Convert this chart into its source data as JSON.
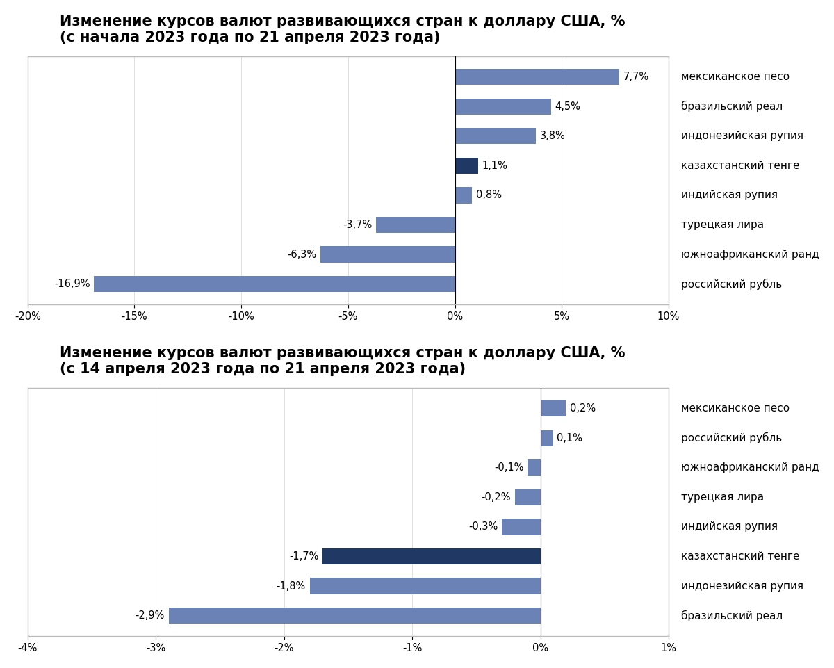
{
  "chart1": {
    "title": "Изменение курсов валют развивающихся стран к доллару США, %\n(с начала 2023 года по 21 апреля 2023 года)",
    "categories": [
      "мексиканское песо",
      "бразильский реал",
      "индонезийская рупия",
      "казахстанский тенге",
      "индийская рупия",
      "турецкая лира",
      "южноафриканский ранд",
      "российский рубль"
    ],
    "values": [
      7.7,
      4.5,
      3.8,
      1.1,
      0.8,
      -3.7,
      -6.3,
      -16.9
    ],
    "colors": [
      "#6a82b5",
      "#6a82b5",
      "#6a82b5",
      "#1f3864",
      "#6a82b5",
      "#6a82b5",
      "#6a82b5",
      "#6a82b5"
    ],
    "xlim": [
      -20,
      10
    ],
    "xticks": [
      -20,
      -15,
      -10,
      -5,
      0,
      5,
      10
    ],
    "xtick_labels": [
      "-20%",
      "-15%",
      "-10%",
      "-5%",
      "0%",
      "5%",
      "10%"
    ]
  },
  "chart2": {
    "title": "Изменение курсов валют развивающихся стран к доллару США, %\n(с 14 апреля 2023 года по 21 апреля 2023 года)",
    "categories": [
      "мексиканское песо",
      "российский рубль",
      "южноафриканский ранд",
      "турецкая лира",
      "индийская рупия",
      "казахстанский тенге",
      "индонезийская рупия",
      "бразильский реал"
    ],
    "values": [
      0.2,
      0.1,
      -0.1,
      -0.2,
      -0.3,
      -1.7,
      -1.8,
      -2.9
    ],
    "colors": [
      "#6a82b5",
      "#6a82b5",
      "#6a82b5",
      "#6a82b5",
      "#6a82b5",
      "#1f3864",
      "#6a82b5",
      "#6a82b5"
    ],
    "xlim": [
      -4,
      1
    ],
    "xticks": [
      -4,
      -3,
      -2,
      -1,
      0,
      1
    ],
    "xtick_labels": [
      "-4%",
      "-3%",
      "-2%",
      "-1%",
      "0%",
      "1%"
    ]
  },
  "bg_color": "#f5f5f5",
  "bar_height": 0.55,
  "title_fontsize": 15,
  "label_fontsize": 11,
  "tick_fontsize": 10.5,
  "value_fontsize": 10.5
}
